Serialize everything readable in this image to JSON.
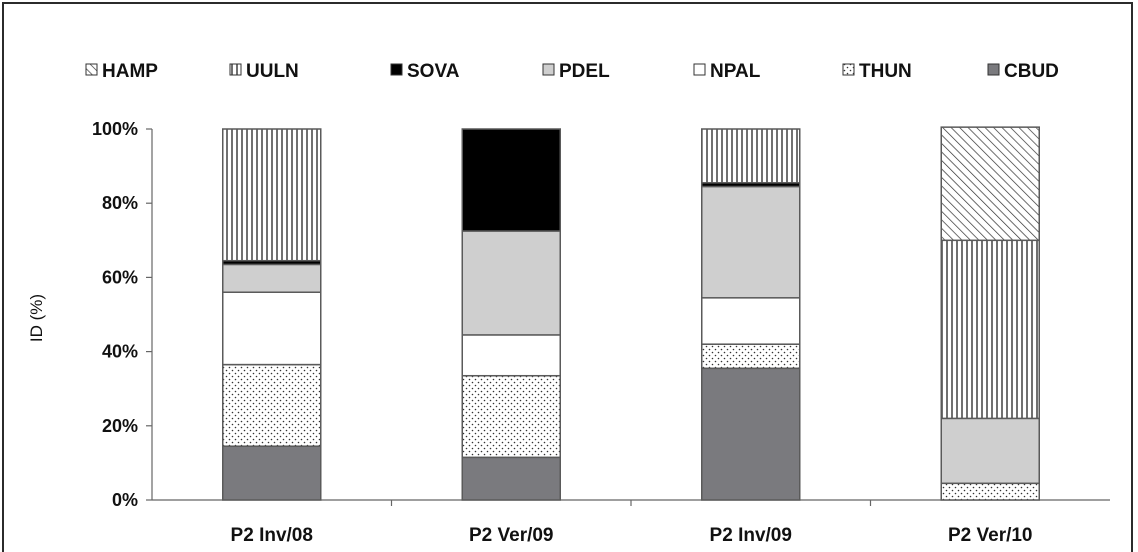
{
  "chart_data": {
    "type": "bar",
    "stacked": true,
    "percent": true,
    "categories": [
      "P2 Inv/08",
      "P2 Ver/09",
      "P2 Inv/09",
      "P2 Ver/10"
    ],
    "ylabel": "ID (%)",
    "ylim": [
      0,
      100
    ],
    "yticks": [
      "0%",
      "20%",
      "40%",
      "60%",
      "80%",
      "100%"
    ],
    "grid": false,
    "legend_position": "top",
    "legend_order": [
      "HAMP",
      "UULN",
      "SOVA",
      "PDEL",
      "NPAL",
      "THUN",
      "CBUD"
    ],
    "series": [
      {
        "name": "CBUD",
        "pattern": "solid-dark-gray",
        "color": "#7a7a7e",
        "values": [
          14.5,
          11.5,
          35.5,
          0
        ]
      },
      {
        "name": "THUN",
        "pattern": "dots",
        "color": "#ffffff",
        "values": [
          22.0,
          22.0,
          6.5,
          4.5
        ]
      },
      {
        "name": "NPAL",
        "pattern": "white",
        "color": "#ffffff",
        "values": [
          19.5,
          11.0,
          12.5,
          0
        ]
      },
      {
        "name": "PDEL",
        "pattern": "solid-light-gray",
        "color": "#cfcfcf",
        "values": [
          7.5,
          28.0,
          30.0,
          17.5
        ]
      },
      {
        "name": "SOVA",
        "pattern": "solid-black",
        "color": "#000000",
        "values": [
          1.0,
          27.5,
          1.0,
          0
        ]
      },
      {
        "name": "UULN",
        "pattern": "vertical-lines",
        "color": "#ffffff",
        "values": [
          35.5,
          0,
          14.5,
          48.0
        ]
      },
      {
        "name": "HAMP",
        "pattern": "diagonal-lines",
        "color": "#ffffff",
        "values": [
          0,
          0,
          0,
          30.5
        ]
      }
    ]
  }
}
